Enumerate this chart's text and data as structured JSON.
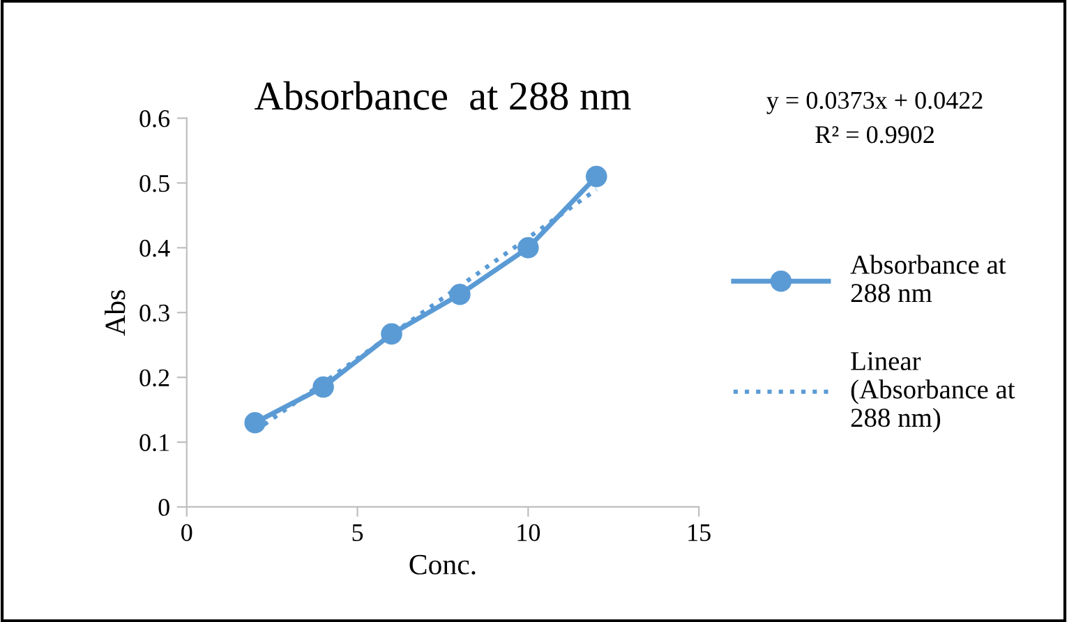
{
  "chart_data": {
    "type": "line",
    "title": "Absorbance  at 288 nm",
    "xlabel": "Conc.",
    "ylabel": "Abs",
    "x": [
      2,
      4,
      6,
      8,
      10,
      12
    ],
    "series": [
      {
        "name": "Absorbance at\n288 nm",
        "color": "#5b9bd5",
        "values": [
          0.13,
          0.185,
          0.267,
          0.328,
          0.4,
          0.51
        ],
        "marker": "circle",
        "line_style": "solid"
      },
      {
        "name": "Linear\n(Absorbance at\n288 nm)",
        "color": "#5b9bd5",
        "type": "line",
        "x": [
          2,
          12
        ],
        "values": [
          0.117,
          0.49
        ],
        "marker": "none",
        "line_style": "dotted"
      }
    ],
    "annotations": [
      "y = 0.0373x + 0.0422",
      "R² = 0.9902"
    ],
    "xlim": [
      0,
      15
    ],
    "xticks": [
      0,
      5,
      10,
      15
    ],
    "ylim": [
      0,
      0.6
    ],
    "yticks": [
      0,
      0.1,
      0.2,
      0.3,
      0.4,
      0.5,
      0.6
    ],
    "grid": false,
    "legend": "right"
  }
}
